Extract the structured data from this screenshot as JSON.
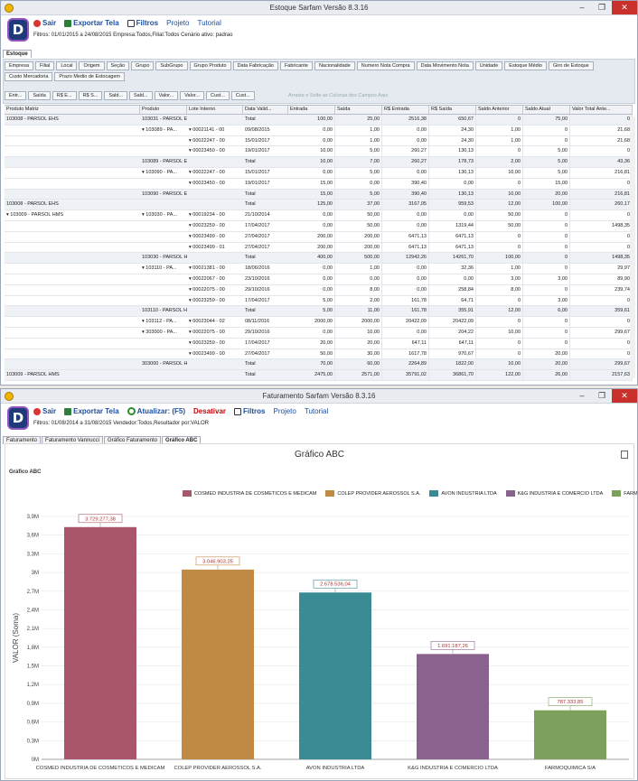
{
  "w1": {
    "title": "Estoque Sarfam Versão 8.3.16",
    "logo": "D",
    "menu": {
      "sair": "Sair",
      "exportar": "Exportar Tela",
      "filtros": "Filtros",
      "projeto": "Projeto",
      "tutorial": "Tutorial"
    },
    "filters_text": "Filtros: 01/01/2015 a 24/08/2015 Empresa:Todos,Filial:Todos Cenário ativo: padrao",
    "tab": "Estoque",
    "pills_row1": [
      "Empresa",
      "Filial",
      "Local",
      "Origem",
      "Seção",
      "Grupo",
      "SubGrupo",
      "Grupo Produto",
      "Data Fabricação",
      "Fabricante",
      "Nacionalidade",
      "Numero Nota Compra",
      "Data Movimento Nota",
      "Unidade",
      "Estoque Médio",
      "Giro de Estoque"
    ],
    "pills_row2": [
      "Custo Mercadoria",
      "Prazo Medio de Estocagem"
    ],
    "measure_pills": [
      "Entr...",
      "Saída",
      "R$ E...",
      "R$ S...",
      "Sald...",
      "Sald...",
      "Valor...",
      "Valor...",
      "Cust...",
      "Cust..."
    ],
    "drag_hint": "Arraste e Solte as Colunas dos Campos Aqui",
    "headers": [
      "Produto Matriz",
      "Produto",
      "Lote Interno",
      "Data Valid...",
      "Entrada",
      "Saída",
      "R$ Entrada",
      "R$ Saída",
      "Saldo Anterior",
      "Saldo Atual",
      "Valor Total Ante..."
    ],
    "rows": [
      [
        "103008 - PARSOL EHS",
        "103031 - PARSOL EHS - 25,000",
        "",
        "Total",
        "100,00",
        "25,00",
        "2516,38",
        "650,67",
        "0",
        "75,00",
        "0"
      ],
      [
        "",
        "▾ 103089 - PA...",
        "▾ 00021141 - 00",
        "09/08/2015",
        "0,00",
        "1,00",
        "0,00",
        "24,30",
        "1,00",
        "0",
        "21,68"
      ],
      [
        "",
        "",
        "▾ 00022247 - 00",
        "15/01/2017",
        "0,00",
        "1,00",
        "0,00",
        "24,30",
        "1,00",
        "0",
        "21,68"
      ],
      [
        "",
        "",
        "▾ 00023450 - 00",
        "19/01/2017",
        "10,00",
        "5,00",
        "260,27",
        "130,13",
        "0",
        "5,00",
        "0"
      ],
      [
        "",
        "103089 - PARSOL EHS - 1,000",
        "",
        "Total",
        "10,00",
        "7,00",
        "260,27",
        "178,73",
        "2,00",
        "5,00",
        "43,36"
      ],
      [
        "",
        "▾ 103090 - PA...",
        "▾ 00022247 - 00",
        "15/01/2017",
        "0,00",
        "5,00",
        "0,00",
        "130,13",
        "10,00",
        "5,00",
        "216,81"
      ],
      [
        "",
        "",
        "▾ 00023450 - 00",
        "19/01/2017",
        "15,00",
        "0,00",
        "390,40",
        "0,00",
        "0",
        "15,00",
        "0"
      ],
      [
        "",
        "103090 - PARSOL EHS - 5,000",
        "",
        "Total",
        "15,00",
        "5,00",
        "390,40",
        "130,13",
        "10,00",
        "20,00",
        "216,81"
      ],
      [
        "103008 - PARSOL EHS",
        "",
        "",
        "Total",
        "125,00",
        "37,00",
        "3167,05",
        "959,53",
        "12,00",
        "100,00",
        "260,17"
      ],
      [
        "▾ 103009 - PARSOL HMS",
        "▾ 103030 - PA...",
        "▾ 00019234 - 00",
        "21/10/2014",
        "0,00",
        "50,00",
        "0,00",
        "0,00",
        "50,00",
        "0",
        "0"
      ],
      [
        "",
        "",
        "▾ 00023259 - 00",
        "17/04/2017",
        "0,00",
        "50,00",
        "0,00",
        "1319,44",
        "50,00",
        "0",
        "1498,35"
      ],
      [
        "",
        "",
        "▾ 00023499 - 00",
        "27/04/2017",
        "200,00",
        "200,00",
        "6471,13",
        "6471,13",
        "0",
        "0",
        "0"
      ],
      [
        "",
        "",
        "▾ 00023499 - 01",
        "27/04/2017",
        "200,00",
        "200,00",
        "6471,13",
        "6471,13",
        "0",
        "0",
        "0"
      ],
      [
        "",
        "103030 - PARSOL HMS - 25,000",
        "",
        "Total",
        "400,00",
        "500,00",
        "12942,26",
        "14261,70",
        "100,00",
        "0",
        "1498,35"
      ],
      [
        "",
        "▾ 103110 - PA...",
        "▾ 00021381 - 00",
        "18/06/2016",
        "0,00",
        "1,00",
        "0,00",
        "32,36",
        "1,00",
        "0",
        "29,97"
      ],
      [
        "",
        "",
        "▾ 00022067 - 00",
        "23/10/2016",
        "0,00",
        "0,00",
        "0,00",
        "0,00",
        "3,00",
        "3,00",
        "89,90"
      ],
      [
        "",
        "",
        "▾ 00022075 - 00",
        "29/10/2016",
        "0,00",
        "8,00",
        "0,00",
        "258,84",
        "8,00",
        "0",
        "239,74"
      ],
      [
        "",
        "",
        "▾ 00023259 - 00",
        "17/04/2017",
        "5,00",
        "2,00",
        "161,78",
        "64,71",
        "0",
        "3,00",
        "0"
      ],
      [
        "",
        "103110 - PARSOL HMS - 1,000",
        "",
        "Total",
        "5,00",
        "11,00",
        "161,78",
        "355,91",
        "12,00",
        "6,00",
        "359,61"
      ],
      [
        "",
        "▾ 103112 - PA...",
        "▾ 00023044 - 02",
        "08/11/2016",
        "2000,00",
        "2000,00",
        "20422,09",
        "20422,09",
        "0",
        "0",
        "0"
      ],
      [
        "",
        "▾ 303000 - PA...",
        "▾ 00022075 - 00",
        "29/10/2016",
        "0,00",
        "10,00",
        "0,00",
        "204,22",
        "10,00",
        "0",
        "299,67"
      ],
      [
        "",
        "",
        "▾ 00023259 - 00",
        "17/04/2017",
        "20,00",
        "20,00",
        "647,11",
        "647,11",
        "0",
        "0",
        "0"
      ],
      [
        "",
        "",
        "▾ 00023499 - 00",
        "27/04/2017",
        "50,00",
        "30,00",
        "1617,78",
        "970,67",
        "0",
        "20,00",
        "0"
      ],
      [
        "",
        "303000 - PARSOL HMS - 5,000",
        "",
        "Total",
        "70,00",
        "60,00",
        "2264,89",
        "1822,00",
        "10,00",
        "20,00",
        "299,67"
      ],
      [
        "103009 - PARSOL HMS",
        "",
        "",
        "Total",
        "2475,00",
        "2571,00",
        "35791,02",
        "36861,70",
        "122,00",
        "26,00",
        "2157,63"
      ]
    ]
  },
  "w2": {
    "title": "Faturamento Sarfam Versão 8.3.16",
    "logo": "D",
    "menu": {
      "sair": "Sair",
      "exportar": "Exportar Tela",
      "atualizar": "Atualizar: (F5)",
      "desativar": "Desativar",
      "filtros": "Filtros",
      "projeto": "Projeto",
      "tutorial": "Tutorial"
    },
    "filters_text": "Filtros: 01/08/2014 a 31/08/2015 Vendedor:Todos,Resultador por:VALOR",
    "tabs": [
      "Faturamento",
      "Faturamento Vannucci",
      "Gráfico Faturamento",
      "Gráfico ABC"
    ],
    "chart_title": "Gráfico ABC",
    "chart_subtitle": "Gráfico ABC"
  },
  "chart_data": {
    "type": "bar",
    "title": "Gráfico ABC",
    "ylabel": "VALOR (Soma)",
    "xlabel": "",
    "ylim": [
      0,
      3900000
    ],
    "yticks": [
      "0M",
      "0,3M",
      "0,6M",
      "0,9M",
      "1,2M",
      "1,5M",
      "1,8M",
      "2,1M",
      "2,4M",
      "2,7M",
      "3M",
      "3,3M",
      "3,6M",
      "3,9M"
    ],
    "categories": [
      "COSMED INDUSTRIA DE COSMETICOS E MEDICAM",
      "COLEP PROVIDER AEROSSOL S.A.",
      "AVON INDUSTRIA LTDA",
      "K&G INDUSTRIA E COMERCIO LTDA",
      "FARMOQUIMICA S/A"
    ],
    "values": [
      3729277.38,
      3046903.25,
      2678536.04,
      1691187.26,
      787333.85
    ],
    "labels": [
      "3.729.277,38",
      "3.046.903,25",
      "2.678.536,04",
      "1.691.187,26",
      "787.333,85"
    ],
    "colors": [
      "#a9566b",
      "#c08a45",
      "#3a8b94",
      "#89628d",
      "#7ea05d"
    ],
    "grid": true,
    "legend": "top"
  }
}
